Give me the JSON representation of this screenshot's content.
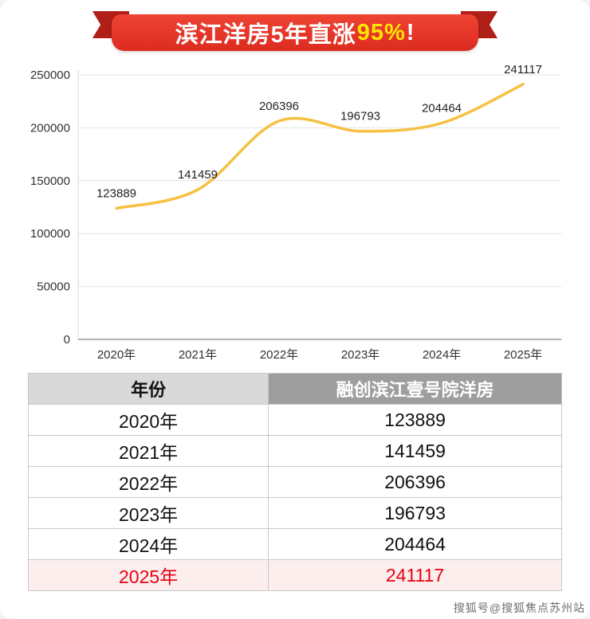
{
  "banner": {
    "text_main": "滨江洋房5年直涨",
    "text_highlight": "95%",
    "text_suffix": "!",
    "bg_color": "#dd2b1f",
    "highlight_color": "#ffe600"
  },
  "chart_data": {
    "type": "line",
    "title": "",
    "categories": [
      "2020年",
      "2021年",
      "2022年",
      "2023年",
      "2024年",
      "2025年"
    ],
    "values": [
      123889,
      141459,
      206396,
      196793,
      204464,
      241117
    ],
    "series_name": "融创滨江壹号院洋房",
    "xlabel": "",
    "ylabel": "",
    "ylim": [
      0,
      250000
    ],
    "yticks": [
      0,
      50000,
      100000,
      150000,
      200000,
      250000
    ],
    "line_color": "#f6c143",
    "grid": true,
    "legend_position": "none"
  },
  "table": {
    "headers": [
      "年份",
      "融创滨江壹号院洋房"
    ],
    "rows": [
      [
        "2020年",
        "123889"
      ],
      [
        "2021年",
        "141459"
      ],
      [
        "2022年",
        "206396"
      ],
      [
        "2023年",
        "196793"
      ],
      [
        "2024年",
        "204464"
      ],
      [
        "2025年",
        "241117"
      ]
    ],
    "highlight_row_index": 5,
    "highlight_text_color": "#e60012"
  },
  "watermark": "搜狐号@搜狐焦点苏州站"
}
